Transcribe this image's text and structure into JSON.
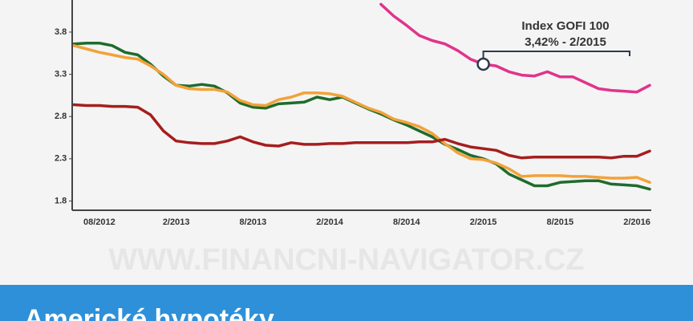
{
  "chart_data": {
    "type": "line",
    "categories": [
      null,
      null,
      "08/2012",
      null,
      null,
      null,
      null,
      null,
      "2/2013",
      null,
      null,
      null,
      null,
      null,
      "8/2013",
      null,
      null,
      null,
      null,
      null,
      "2/2014",
      null,
      null,
      null,
      null,
      null,
      "8/2014",
      null,
      null,
      null,
      null,
      null,
      "2/2015",
      null,
      null,
      null,
      null,
      null,
      "8/2015",
      null,
      null,
      null,
      null,
      null,
      "2/2016",
      null
    ],
    "series": [
      {
        "color": "#1f6b2c",
        "values": [
          3.66,
          3.67,
          3.67,
          3.64,
          3.56,
          3.53,
          3.42,
          3.28,
          3.17,
          3.16,
          3.18,
          3.16,
          3.08,
          2.96,
          2.91,
          2.9,
          2.95,
          2.96,
          2.97,
          3.03,
          3.0,
          3.03,
          2.96,
          2.89,
          2.83,
          2.76,
          2.7,
          2.63,
          2.56,
          2.47,
          2.41,
          2.34,
          2.3,
          2.24,
          2.12,
          2.05,
          1.98,
          1.98,
          2.02,
          2.03,
          2.04,
          2.04,
          2.0,
          1.99,
          1.98,
          1.94
        ]
      },
      {
        "color": "#f2a23a",
        "values": [
          3.64,
          3.6,
          3.56,
          3.53,
          3.5,
          3.48,
          3.4,
          3.3,
          3.17,
          3.13,
          3.12,
          3.12,
          3.09,
          2.99,
          2.94,
          2.93,
          3.0,
          3.03,
          3.08,
          3.08,
          3.07,
          3.04,
          2.97,
          2.9,
          2.85,
          2.77,
          2.73,
          2.68,
          2.6,
          2.48,
          2.37,
          2.3,
          2.29,
          2.25,
          2.18,
          2.09,
          2.1,
          2.1,
          2.1,
          2.09,
          2.09,
          2.08,
          2.07,
          2.07,
          2.08,
          2.02
        ]
      },
      {
        "color": "#a51e1e",
        "values": [
          2.94,
          2.93,
          2.93,
          2.92,
          2.92,
          2.91,
          2.82,
          2.63,
          2.51,
          2.49,
          2.48,
          2.48,
          2.51,
          2.56,
          2.5,
          2.46,
          2.45,
          2.49,
          2.47,
          2.47,
          2.48,
          2.48,
          2.49,
          2.49,
          2.49,
          2.49,
          2.49,
          2.5,
          2.5,
          2.53,
          2.48,
          2.44,
          2.42,
          2.4,
          2.34,
          2.31,
          2.32,
          2.32,
          2.32,
          2.32,
          2.32,
          2.32,
          2.31,
          2.33,
          2.33,
          2.39
        ]
      },
      {
        "color": "#e0348c",
        "values": [
          null,
          null,
          null,
          null,
          null,
          null,
          null,
          null,
          null,
          null,
          null,
          null,
          null,
          null,
          null,
          null,
          null,
          null,
          null,
          null,
          null,
          null,
          null,
          null,
          4.13,
          3.99,
          3.88,
          3.76,
          3.7,
          3.66,
          3.58,
          3.48,
          3.42,
          3.4,
          3.33,
          3.29,
          3.28,
          3.33,
          3.27,
          3.27,
          3.2,
          3.13,
          3.11,
          3.1,
          3.09,
          3.17
        ]
      }
    ],
    "annotation": {
      "title": "Index GOFI 100",
      "text": "3,42% - 2/2015"
    },
    "watermark": "WWW.FINANCNI-NAVIGATOR.CZ",
    "banner": "Americké hypotéky",
    "ylim": [
      1.69,
      4.18
    ],
    "yticks": [
      1.8,
      2.3,
      2.8,
      3.3,
      3.8
    ],
    "grid": false
  }
}
